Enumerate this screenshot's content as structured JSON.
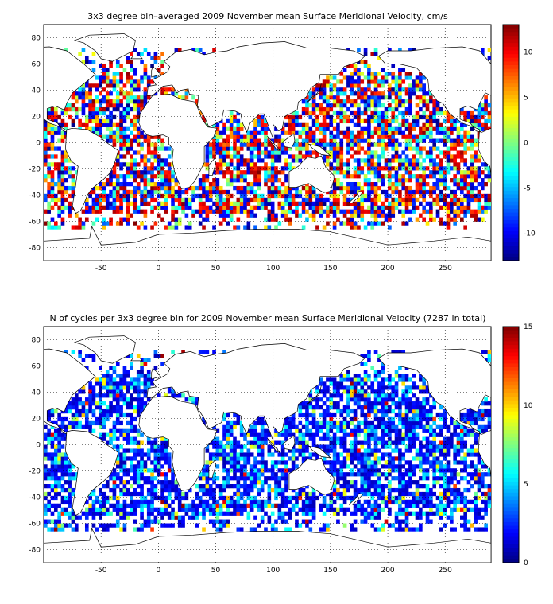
{
  "chart_data": [
    {
      "type": "heatmap",
      "title": "3x3 degree bin–averaged 2009 November mean Surface Meridional Velocity, cm/s",
      "xlabel": "",
      "ylabel": "",
      "xlim": [
        -100,
        290
      ],
      "ylim": [
        -90,
        90
      ],
      "x_ticks": [
        -50,
        0,
        50,
        100,
        150,
        200,
        250
      ],
      "y_ticks": [
        80,
        60,
        40,
        20,
        0,
        -20,
        -40,
        -60,
        -80
      ],
      "grid": true,
      "grid_style": "dotted",
      "bin_size_deg": 3,
      "colormap": "jet",
      "colorbar": {
        "min": -13,
        "max": 13,
        "ticks": [
          10,
          5,
          0,
          -5,
          -10
        ]
      },
      "data_note": "Sparse ocean-only 3x3 degree bins; individual bin values not individually legible."
    },
    {
      "type": "heatmap",
      "title": "N of cycles per 3x3 degree bin for 2009 November mean Surface Meridional Velocity (7287 in total)",
      "xlabel": "",
      "ylabel": "",
      "xlim": [
        -100,
        290
      ],
      "ylim": [
        -90,
        90
      ],
      "x_ticks": [
        -50,
        0,
        50,
        100,
        150,
        200,
        250
      ],
      "y_ticks": [
        80,
        60,
        40,
        20,
        0,
        -20,
        -40,
        -60,
        -80
      ],
      "grid": true,
      "grid_style": "dotted",
      "bin_size_deg": 3,
      "colormap": "jet",
      "colorbar": {
        "min": 0,
        "max": 15,
        "ticks": [
          15,
          10,
          5,
          0
        ]
      },
      "total_cycles": 7287,
      "data_note": "Sparse ocean-only bins, mostly low counts (0-5) with a few high values."
    }
  ],
  "colors": {
    "jet": [
      "#00008f",
      "#0000ff",
      "#0080ff",
      "#00ffff",
      "#80ff80",
      "#ffff00",
      "#ff8000",
      "#ff0000",
      "#800000"
    ]
  }
}
